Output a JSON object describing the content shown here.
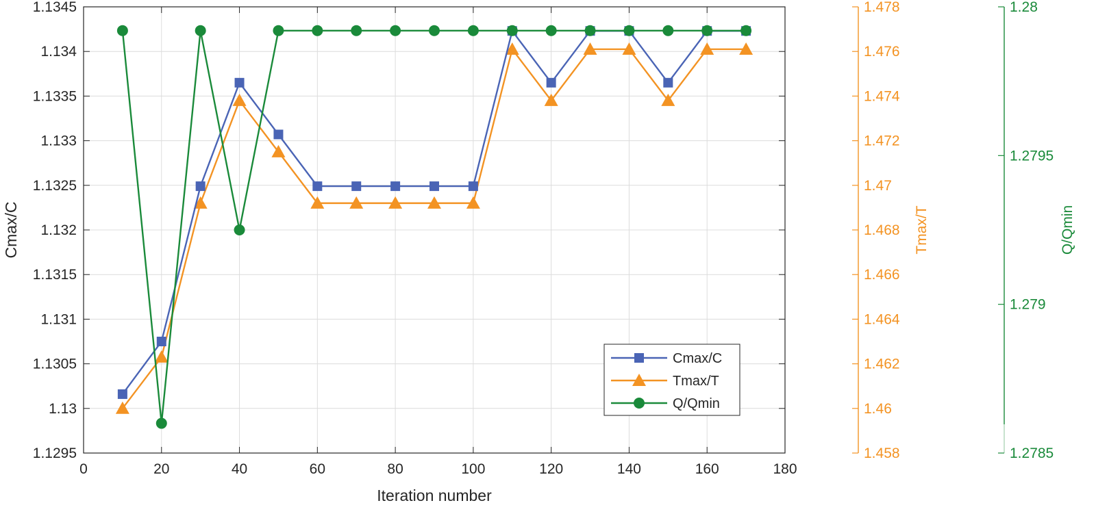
{
  "chart_data": {
    "type": "line",
    "xlabel": "Iteration number",
    "x_axis": {
      "range": [
        0,
        180
      ],
      "ticks": [
        0,
        20,
        40,
        60,
        80,
        100,
        120,
        140,
        160,
        180
      ]
    },
    "y_axes": [
      {
        "id": "left",
        "label": "Cmax/C",
        "color": "#262626",
        "range": [
          1.1295,
          1.1345
        ],
        "ticks": [
          "1.1295",
          "1.13",
          "1.1305",
          "1.131",
          "1.1315",
          "1.132",
          "1.1325",
          "1.133",
          "1.1335",
          "1.134",
          "1.1345"
        ]
      },
      {
        "id": "right1",
        "label": "Tmax/T",
        "color": "#f39323",
        "range": [
          1.458,
          1.478
        ],
        "ticks": [
          "1.458",
          "1.46",
          "1.462",
          "1.464",
          "1.466",
          "1.468",
          "1.47",
          "1.472",
          "1.474",
          "1.476",
          "1.478"
        ]
      },
      {
        "id": "right2",
        "label": "Q/Qmin",
        "color": "#1a8a3a",
        "range": [
          1.2785,
          1.28
        ],
        "ticks": [
          "1.2785",
          "1.279",
          "1.2795",
          "1.28"
        ]
      }
    ],
    "grid": true,
    "legend_position": "lower-right",
    "x": [
      10,
      20,
      30,
      40,
      50,
      60,
      70,
      80,
      90,
      100,
      110,
      120,
      130,
      140,
      150,
      160,
      170
    ],
    "series": [
      {
        "name": "Cmax/C",
        "axis": "left",
        "color": "#4a64b5",
        "marker": "square",
        "values": [
          1.13016,
          1.13075,
          1.13249,
          1.13365,
          1.13307,
          1.13249,
          1.13249,
          1.13249,
          1.13249,
          1.13249,
          1.13423,
          1.13365,
          1.13423,
          1.13423,
          1.13365,
          1.13423,
          1.13423
        ]
      },
      {
        "name": "Tmax/T",
        "axis": "right1",
        "color": "#f39323",
        "marker": "triangle",
        "values": [
          1.46,
          1.4623,
          1.4692,
          1.4738,
          1.4715,
          1.4692,
          1.4692,
          1.4692,
          1.4692,
          1.4692,
          1.4761,
          1.4738,
          1.4761,
          1.4761,
          1.4738,
          1.4761,
          1.4761
        ]
      },
      {
        "name": "Q/Qmin",
        "axis": "right2",
        "color": "#1a8a3a",
        "marker": "circle",
        "values": [
          1.27992,
          1.2786,
          1.27992,
          1.27925,
          1.27992,
          1.27992,
          1.27992,
          1.27992,
          1.27992,
          1.27992,
          1.27992,
          1.27992,
          1.27992,
          1.27992,
          1.27992,
          1.27992,
          1.27992
        ]
      }
    ]
  }
}
